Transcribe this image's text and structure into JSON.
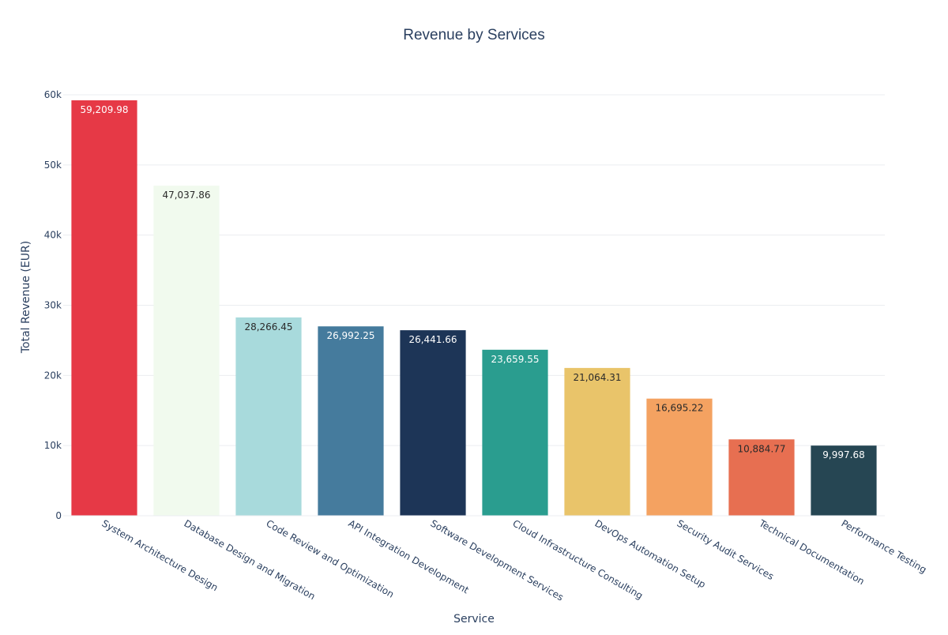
{
  "chart_data": {
    "type": "bar",
    "title": "Revenue by Services",
    "xlabel": "Service",
    "ylabel": "Total Revenue (EUR)",
    "ylim": [
      0,
      60000
    ],
    "yticks": [
      0,
      10000,
      20000,
      30000,
      40000,
      50000,
      60000
    ],
    "ytick_labels": [
      "0",
      "10k",
      "20k",
      "30k",
      "40k",
      "50k",
      "60k"
    ],
    "grid": true,
    "legend": "none",
    "categories": [
      "System Architecture Design",
      "Database Design and Migration",
      "Code Review and Optimization",
      "API Integration Development",
      "Software Development Services",
      "Cloud Infrastructure Consulting",
      "DevOps Automation Setup",
      "Security Audit Services",
      "Technical Documentation",
      "Performance Testing"
    ],
    "values": [
      59209.98,
      47037.86,
      28266.45,
      26992.25,
      26441.66,
      23659.55,
      21064.31,
      16695.22,
      10884.77,
      9997.68
    ],
    "value_labels": [
      "59,209.98",
      "47,037.86",
      "28,266.45",
      "26,992.25",
      "26,441.66",
      "23,659.55",
      "21,064.31",
      "16,695.22",
      "10,884.77",
      "9,997.68"
    ],
    "colors": [
      "#e63946",
      "#f1faee",
      "#a8dadc",
      "#457b9d",
      "#1d3557",
      "#2a9d8f",
      "#e9c46a",
      "#f4a261",
      "#e76f51",
      "#264653"
    ],
    "label_colors": [
      "#ffffff",
      "#2a2a2a",
      "#2a2a2a",
      "#ffffff",
      "#ffffff",
      "#ffffff",
      "#2a2a2a",
      "#2a2a2a",
      "#2a2a2a",
      "#ffffff"
    ]
  }
}
